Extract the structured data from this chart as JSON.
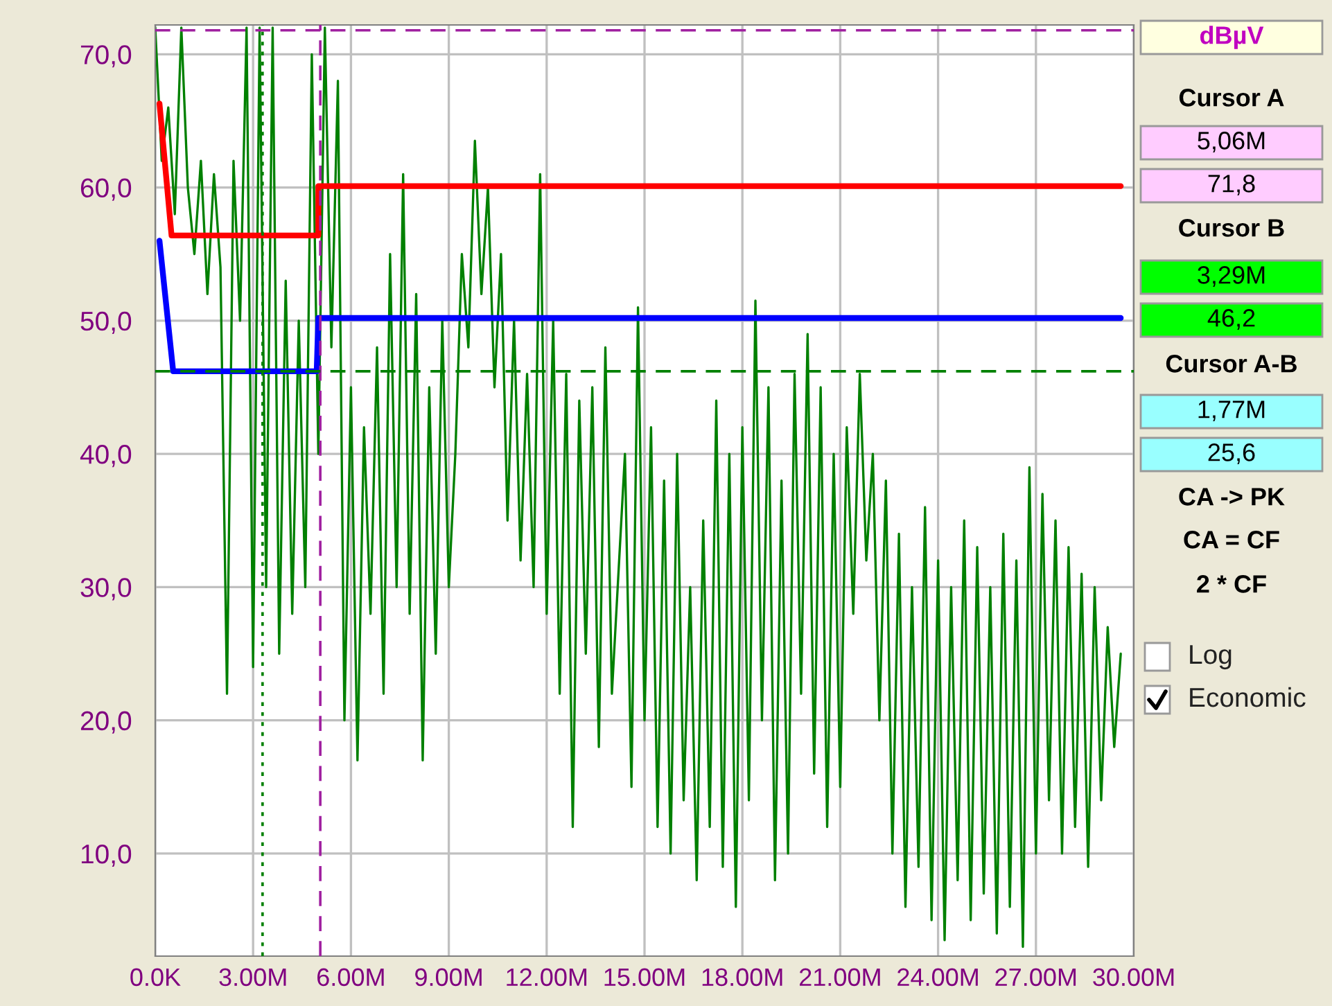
{
  "chart_data": {
    "type": "line",
    "xlim": [
      0,
      30
    ],
    "ylim": [
      2.3,
      72.2
    ],
    "xticks": [
      {
        "value": 0,
        "label": "0.0K"
      },
      {
        "value": 3,
        "label": "3.00M"
      },
      {
        "value": 6,
        "label": "6.00M"
      },
      {
        "value": 9,
        "label": "9.00M"
      },
      {
        "value": 12,
        "label": "12.00M"
      },
      {
        "value": 15,
        "label": "15.00M"
      },
      {
        "value": 18,
        "label": "18.00M"
      },
      {
        "value": 21,
        "label": "21.00M"
      },
      {
        "value": 24,
        "label": "24.00M"
      },
      {
        "value": 27,
        "label": "27.00M"
      },
      {
        "value": 30,
        "label": "30.00M"
      }
    ],
    "yticks": [
      {
        "value": 10,
        "label": "10,0"
      },
      {
        "value": 20,
        "label": "20,0"
      },
      {
        "value": 30,
        "label": "30,0"
      },
      {
        "value": 40,
        "label": "40,0"
      },
      {
        "value": 50,
        "label": "50,0"
      },
      {
        "value": 60,
        "label": "60,0"
      },
      {
        "value": 70,
        "label": "70,0"
      }
    ],
    "grid": true,
    "marker": "none",
    "line_style": "solid",
    "series": [
      {
        "color": "#008000",
        "x": [
          0,
          0.2,
          0.4,
          0.6,
          0.8,
          1.0,
          1.2,
          1.4,
          1.6,
          1.8,
          2.0,
          2.2,
          2.4,
          2.6,
          2.8,
          3.0,
          3.2,
          3.4,
          3.6,
          3.8,
          4.0,
          4.2,
          4.4,
          4.6,
          4.8,
          5.0,
          5.2,
          5.4,
          5.6,
          5.8,
          6.0,
          6.2,
          6.4,
          6.6,
          6.8,
          7.0,
          7.2,
          7.4,
          7.6,
          7.8,
          8.0,
          8.2,
          8.4,
          8.6,
          8.8,
          9.0,
          9.2,
          9.4,
          9.6,
          9.8,
          10.0,
          10.2,
          10.4,
          10.6,
          10.8,
          11.0,
          11.2,
          11.4,
          11.6,
          11.8,
          12.0,
          12.2,
          12.4,
          12.6,
          12.8,
          13.0,
          13.2,
          13.4,
          13.6,
          13.8,
          14.0,
          14.4,
          14.6,
          14.8,
          15.0,
          15.2,
          15.4,
          15.6,
          15.8,
          16.0,
          16.2,
          16.4,
          16.6,
          16.8,
          17.0,
          17.2,
          17.4,
          17.6,
          17.8,
          18.0,
          18.2,
          18.4,
          18.6,
          18.8,
          19.0,
          19.2,
          19.4,
          19.6,
          19.8,
          20.0,
          20.2,
          20.4,
          20.6,
          20.8,
          21.0,
          21.2,
          21.4,
          21.6,
          21.8,
          22.0,
          22.2,
          22.4,
          22.6,
          22.8,
          23.0,
          23.2,
          23.4,
          23.6,
          23.8,
          24.0,
          24.2,
          24.4,
          24.6,
          24.8,
          25.0,
          25.2,
          25.4,
          25.6,
          25.8,
          26.0,
          26.2,
          26.4,
          26.6,
          26.8,
          27.0,
          27.2,
          27.4,
          27.6,
          27.8,
          28.0,
          28.2,
          28.4,
          28.6,
          28.8,
          29.0,
          29.2,
          29.4,
          29.6
        ],
        "values": [
          72,
          62,
          66,
          58,
          72,
          60,
          55,
          62,
          52,
          61,
          54,
          22,
          62,
          50,
          72,
          24,
          72,
          30,
          72,
          25,
          53,
          28,
          50,
          30,
          70,
          40,
          72,
          48,
          68,
          20,
          45,
          17,
          42,
          28,
          48,
          22,
          55,
          30,
          61,
          28,
          52,
          17,
          45,
          25,
          50,
          30,
          40,
          55,
          48,
          63.5,
          52,
          60,
          45,
          55,
          35,
          50,
          32,
          46,
          30,
          61,
          28,
          50,
          22,
          46,
          12,
          44,
          25,
          45,
          18,
          48,
          22,
          40,
          15,
          51,
          20,
          42,
          12,
          38,
          10,
          40,
          14,
          30,
          8,
          35,
          12,
          44,
          9,
          40,
          6,
          42,
          14,
          51.5,
          20,
          45,
          8,
          38,
          10,
          46,
          22,
          49,
          16,
          45,
          12,
          40,
          15,
          42,
          28,
          46,
          32,
          40,
          20,
          38,
          10,
          34,
          6,
          30,
          9,
          36,
          5,
          32,
          3.5,
          30,
          8,
          35,
          5,
          33,
          7,
          30,
          4,
          34,
          6,
          32,
          3,
          39,
          10,
          37,
          14,
          35,
          10,
          33,
          12,
          31,
          9,
          30,
          14,
          27,
          18,
          25
        ]
      },
      {
        "color": "#ff0000",
        "x": [
          0.13,
          0.5,
          5.0,
          5.0,
          29.6
        ],
        "values": [
          66.3,
          56.4,
          56.4,
          60.1,
          60.1
        ]
      },
      {
        "color": "#0000ff",
        "x": [
          0.13,
          0.55,
          4.95,
          5.0,
          29.6
        ],
        "values": [
          56.0,
          46.2,
          46.2,
          50.2,
          50.2
        ]
      }
    ],
    "ref_lines": [
      {
        "axis": "x",
        "value": 5.06,
        "color": "#a020a0",
        "line_style": "dashed"
      },
      {
        "axis": "x",
        "value": 3.29,
        "color": "#008000",
        "line_style": "dotted"
      },
      {
        "axis": "y",
        "value": 71.8,
        "color": "#a020a0",
        "line_style": "dashed"
      },
      {
        "axis": "y",
        "value": 46.2,
        "color": "#008000",
        "line_style": "dashed"
      }
    ],
    "annotations": [
      "dBµV",
      "Cursor A",
      "5,06M",
      "71,8",
      "Cursor B",
      "3,29M",
      "46,2",
      "Cursor A-B",
      "1,77M",
      "25,6",
      "CA -> PK",
      "CA = CF",
      "2 * CF",
      "Log",
      "Economic"
    ]
  }
}
